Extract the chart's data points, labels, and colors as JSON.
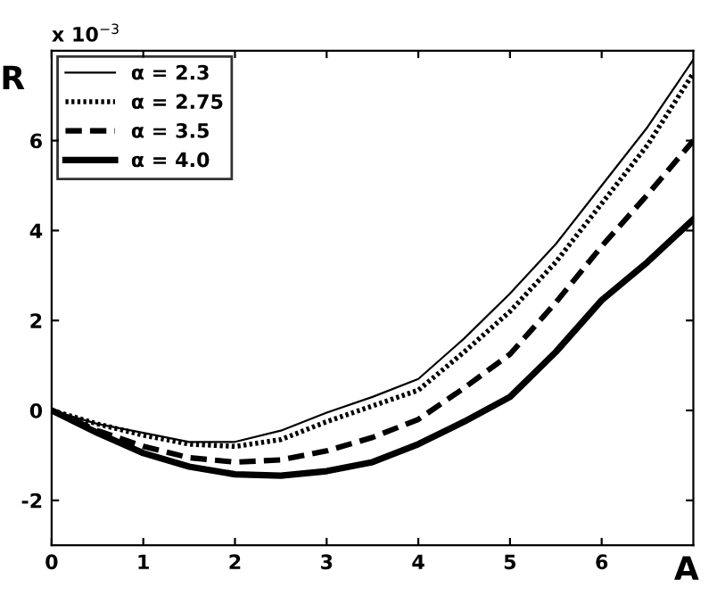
{
  "chart_data": {
    "type": "line",
    "xlabel": "A",
    "ylabel": "R",
    "annotations": [
      "x 10$^{−3}$"
    ],
    "x": [
      0,
      0.5,
      1,
      1.5,
      2,
      2.5,
      3,
      3.5,
      4,
      4.5,
      5,
      5.5,
      6,
      6.5,
      7
    ],
    "xlim": [
      0,
      7
    ],
    "ylim": [
      -3,
      8
    ],
    "xticks": [
      0,
      1,
      2,
      3,
      4,
      5,
      6
    ],
    "yticks": [
      -2,
      0,
      2,
      4,
      6
    ],
    "grid": false,
    "legend": "top left",
    "series": [
      {
        "name": "α = 2.3",
        "color": "#000000",
        "line_style": "solid",
        "values": [
          0,
          -0.3,
          -0.5,
          -0.7,
          -0.7,
          -0.45,
          -0.05,
          0.3,
          0.7,
          1.6,
          2.6,
          3.7,
          5.0,
          6.3,
          7.8
        ]
      },
      {
        "name": "α = 2.75",
        "color": "#000000",
        "line_style": "dotted",
        "values": [
          0,
          -0.3,
          -0.55,
          -0.75,
          -0.8,
          -0.65,
          -0.25,
          0.1,
          0.45,
          1.3,
          2.2,
          3.3,
          4.6,
          5.9,
          7.5
        ]
      },
      {
        "name": "α = 3.5",
        "color": "#000000",
        "line_style": "dashed",
        "values": [
          0,
          -0.45,
          -0.8,
          -1.05,
          -1.15,
          -1.1,
          -0.9,
          -0.6,
          -0.2,
          0.5,
          1.25,
          2.4,
          3.65,
          4.8,
          6.0
        ]
      },
      {
        "name": "α = 4.0",
        "color": "#000000",
        "line_style": "solid",
        "values": [
          0,
          -0.5,
          -0.95,
          -1.25,
          -1.42,
          -1.45,
          -1.35,
          -1.15,
          -0.75,
          -0.25,
          0.3,
          1.3,
          2.45,
          3.3,
          4.25
        ]
      }
    ]
  }
}
